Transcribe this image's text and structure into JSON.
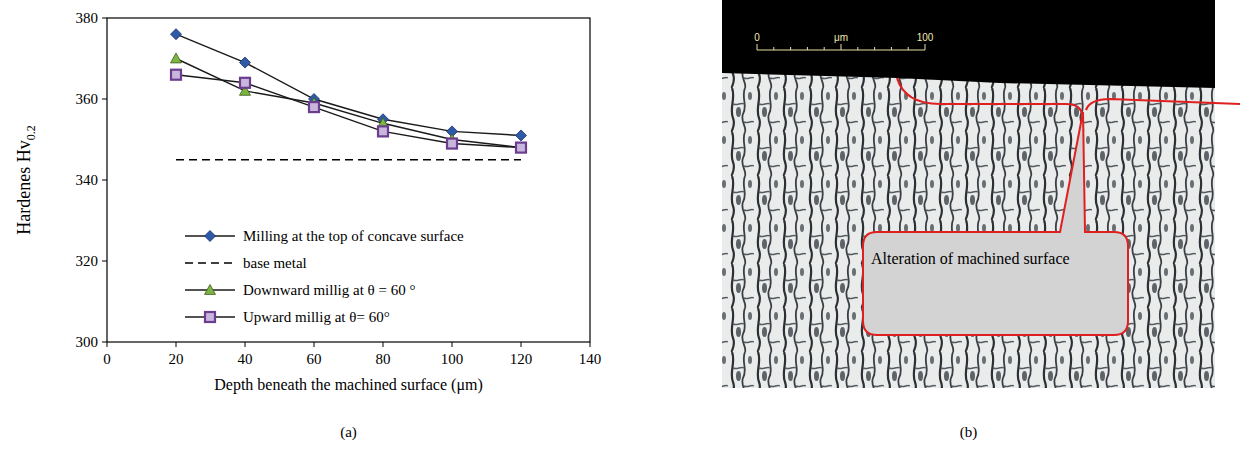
{
  "chart_data": {
    "type": "line",
    "xlabel": "Depth beneath the machined surface (μm)",
    "ylabel": "Hardenes Hv",
    "ylabel_subscript": "0.2",
    "caption": "(a)",
    "x": [
      20,
      40,
      60,
      80,
      100,
      120
    ],
    "xlim": [
      0,
      140
    ],
    "xticks": [
      0,
      20,
      40,
      60,
      80,
      100,
      120,
      140
    ],
    "ylim": [
      300,
      380
    ],
    "yticks": [
      300,
      320,
      340,
      360,
      380
    ],
    "grid": false,
    "legend": "bottom",
    "series": [
      {
        "name": "Milling at the top of concave surface",
        "color": "#2e5aa8",
        "marker": "diamond",
        "line_style": "solid",
        "values": [
          376,
          369,
          360,
          355,
          352,
          351
        ]
      },
      {
        "name": "base metal",
        "color": "#000000",
        "marker": "none",
        "line_style": "dashed",
        "values": [
          345,
          345,
          345,
          345,
          345,
          345
        ]
      },
      {
        "name": "Downward millig at θ = 60 °",
        "color": "#7cb342",
        "marker": "triangle",
        "line_style": "solid",
        "values": [
          370,
          362,
          359,
          354,
          350,
          348
        ]
      },
      {
        "name": "Upward millig at θ= 60°",
        "color": "#6a3d8f",
        "marker": "square",
        "line_style": "solid",
        "values": [
          366,
          364,
          358,
          352,
          349,
          348
        ]
      }
    ]
  },
  "micrograph": {
    "scale_bar": {
      "start": "0",
      "unit": "μm",
      "end": "100"
    },
    "callout": "Alteration of machined surface",
    "caption": "(b)"
  }
}
